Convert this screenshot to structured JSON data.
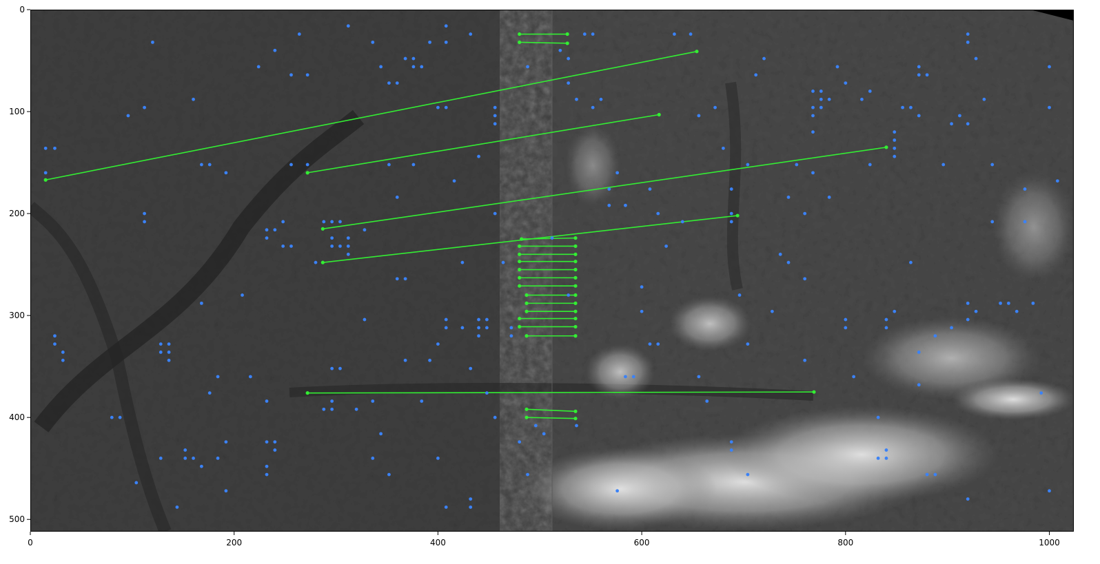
{
  "figure": {
    "background_color": "#ffffff",
    "image_description_colors": {
      "terrain_dark": "#2a2a2a",
      "terrain_mid": "#4a4a4a",
      "cloud": "#d8d8d8"
    },
    "keypoint_color": "#3b82f6",
    "match_color": "#33ee33"
  },
  "axes": {
    "xlim": [
      0,
      1024
    ],
    "ylim": [
      512,
      0
    ],
    "x_ticks": [
      0,
      200,
      400,
      600,
      800,
      1000
    ],
    "y_ticks": [
      0,
      100,
      200,
      300,
      400,
      500
    ],
    "x_tick_labels": [
      "0",
      "200",
      "400",
      "600",
      "800",
      "1000"
    ],
    "y_tick_labels": [
      "0",
      "100",
      "200",
      "300",
      "400",
      "500"
    ]
  },
  "image_split_x": 512,
  "matches": [
    [
      15,
      167,
      654,
      41
    ],
    [
      272,
      160,
      617,
      103
    ],
    [
      287,
      215,
      840,
      135
    ],
    [
      287,
      248,
      694,
      202
    ],
    [
      272,
      376,
      769,
      375
    ],
    [
      480,
      24,
      527,
      24
    ],
    [
      480,
      32,
      527,
      33
    ],
    [
      482,
      225,
      535,
      224
    ],
    [
      480,
      232,
      535,
      232
    ],
    [
      480,
      240,
      535,
      240
    ],
    [
      480,
      247,
      535,
      247
    ],
    [
      480,
      255,
      535,
      255
    ],
    [
      480,
      263,
      535,
      263
    ],
    [
      480,
      271,
      535,
      271
    ],
    [
      487,
      280,
      535,
      280
    ],
    [
      487,
      288,
      535,
      288
    ],
    [
      487,
      296,
      535,
      296
    ],
    [
      480,
      303,
      535,
      303
    ],
    [
      480,
      311,
      535,
      311
    ],
    [
      487,
      320,
      535,
      320
    ],
    [
      487,
      392,
      535,
      394
    ],
    [
      487,
      400,
      535,
      401
    ]
  ],
  "keypoints": [
    [
      15,
      136
    ],
    [
      24,
      136
    ],
    [
      15,
      160
    ],
    [
      24,
      320
    ],
    [
      24,
      328
    ],
    [
      32,
      336
    ],
    [
      32,
      344
    ],
    [
      80,
      400
    ],
    [
      88,
      400
    ],
    [
      96,
      104
    ],
    [
      104,
      464
    ],
    [
      112,
      96
    ],
    [
      112,
      200
    ],
    [
      112,
      208
    ],
    [
      120,
      32
    ],
    [
      128,
      328
    ],
    [
      128,
      336
    ],
    [
      136,
      328
    ],
    [
      136,
      336
    ],
    [
      136,
      344
    ],
    [
      128,
      440
    ],
    [
      144,
      488
    ],
    [
      152,
      432
    ],
    [
      152,
      440
    ],
    [
      160,
      88
    ],
    [
      160,
      440
    ],
    [
      168,
      152
    ],
    [
      168,
      288
    ],
    [
      168,
      448
    ],
    [
      176,
      152
    ],
    [
      176,
      376
    ],
    [
      184,
      360
    ],
    [
      184,
      440
    ],
    [
      192,
      160
    ],
    [
      192,
      424
    ],
    [
      192,
      472
    ],
    [
      208,
      280
    ],
    [
      216,
      360
    ],
    [
      224,
      56
    ],
    [
      232,
      216
    ],
    [
      232,
      224
    ],
    [
      232,
      384
    ],
    [
      232,
      424
    ],
    [
      232,
      448
    ],
    [
      232,
      456
    ],
    [
      240,
      40
    ],
    [
      240,
      216
    ],
    [
      240,
      424
    ],
    [
      240,
      432
    ],
    [
      248,
      232
    ],
    [
      248,
      208
    ],
    [
      256,
      64
    ],
    [
      256,
      152
    ],
    [
      256,
      232
    ],
    [
      264,
      24
    ],
    [
      272,
      64
    ],
    [
      272,
      152
    ],
    [
      280,
      248
    ],
    [
      288,
      208
    ],
    [
      288,
      392
    ],
    [
      296,
      208
    ],
    [
      296,
      224
    ],
    [
      296,
      232
    ],
    [
      296,
      352
    ],
    [
      296,
      384
    ],
    [
      296,
      392
    ],
    [
      304,
      352
    ],
    [
      304,
      208
    ],
    [
      304,
      232
    ],
    [
      312,
      16
    ],
    [
      312,
      224
    ],
    [
      312,
      232
    ],
    [
      312,
      240
    ],
    [
      320,
      392
    ],
    [
      328,
      216
    ],
    [
      328,
      304
    ],
    [
      336,
      32
    ],
    [
      336,
      384
    ],
    [
      336,
      440
    ],
    [
      344,
      56
    ],
    [
      344,
      416
    ],
    [
      352,
      72
    ],
    [
      352,
      152
    ],
    [
      352,
      456
    ],
    [
      360,
      72
    ],
    [
      360,
      184
    ],
    [
      360,
      264
    ],
    [
      368,
      48
    ],
    [
      368,
      264
    ],
    [
      368,
      344
    ],
    [
      376,
      48
    ],
    [
      376,
      56
    ],
    [
      376,
      152
    ],
    [
      384,
      56
    ],
    [
      384,
      384
    ],
    [
      392,
      32
    ],
    [
      392,
      344
    ],
    [
      400,
      96
    ],
    [
      400,
      328
    ],
    [
      400,
      440
    ],
    [
      408,
      16
    ],
    [
      408,
      32
    ],
    [
      408,
      96
    ],
    [
      408,
      304
    ],
    [
      408,
      312
    ],
    [
      408,
      488
    ],
    [
      416,
      168
    ],
    [
      424,
      248
    ],
    [
      424,
      312
    ],
    [
      432,
      24
    ],
    [
      432,
      352
    ],
    [
      432,
      480
    ],
    [
      432,
      488
    ],
    [
      440,
      144
    ],
    [
      440,
      304
    ],
    [
      440,
      312
    ],
    [
      440,
      320
    ],
    [
      448,
      304
    ],
    [
      448,
      312
    ],
    [
      448,
      376
    ],
    [
      456,
      96
    ],
    [
      456,
      104
    ],
    [
      456,
      112
    ],
    [
      456,
      200
    ],
    [
      456,
      400
    ],
    [
      464,
      248
    ],
    [
      472,
      312
    ],
    [
      472,
      320
    ],
    [
      480,
      424
    ],
    [
      488,
      56
    ],
    [
      488,
      456
    ],
    [
      496,
      408
    ],
    [
      504,
      416
    ],
    [
      512,
      224
    ],
    [
      520,
      40
    ],
    [
      528,
      72
    ],
    [
      528,
      280
    ],
    [
      528,
      48
    ],
    [
      536,
      88
    ],
    [
      536,
      408
    ],
    [
      544,
      24
    ],
    [
      552,
      24
    ],
    [
      552,
      96
    ],
    [
      560,
      88
    ],
    [
      568,
      176
    ],
    [
      568,
      192
    ],
    [
      576,
      472
    ],
    [
      576,
      160
    ],
    [
      584,
      192
    ],
    [
      584,
      360
    ],
    [
      592,
      360
    ],
    [
      600,
      272
    ],
    [
      600,
      296
    ],
    [
      608,
      328
    ],
    [
      608,
      176
    ],
    [
      616,
      328
    ],
    [
      616,
      200
    ],
    [
      624,
      232
    ],
    [
      632,
      24
    ],
    [
      640,
      208
    ],
    [
      648,
      24
    ],
    [
      656,
      104
    ],
    [
      656,
      360
    ],
    [
      664,
      384
    ],
    [
      672,
      96
    ],
    [
      680,
      136
    ],
    [
      688,
      176
    ],
    [
      688,
      200
    ],
    [
      688,
      208
    ],
    [
      688,
      424
    ],
    [
      688,
      432
    ],
    [
      696,
      280
    ],
    [
      704,
      328
    ],
    [
      704,
      456
    ],
    [
      704,
      152
    ],
    [
      712,
      64
    ],
    [
      720,
      48
    ],
    [
      728,
      296
    ],
    [
      736,
      240
    ],
    [
      744,
      248
    ],
    [
      744,
      184
    ],
    [
      752,
      152
    ],
    [
      760,
      200
    ],
    [
      760,
      344
    ],
    [
      760,
      264
    ],
    [
      768,
      80
    ],
    [
      768,
      96
    ],
    [
      768,
      104
    ],
    [
      768,
      120
    ],
    [
      768,
      160
    ],
    [
      776,
      80
    ],
    [
      776,
      88
    ],
    [
      776,
      96
    ],
    [
      784,
      184
    ],
    [
      784,
      88
    ],
    [
      792,
      56
    ],
    [
      800,
      72
    ],
    [
      800,
      304
    ],
    [
      800,
      312
    ],
    [
      808,
      360
    ],
    [
      816,
      88
    ],
    [
      824,
      80
    ],
    [
      824,
      152
    ],
    [
      832,
      400
    ],
    [
      832,
      440
    ],
    [
      840,
      440
    ],
    [
      840,
      432
    ],
    [
      840,
      304
    ],
    [
      840,
      312
    ],
    [
      848,
      296
    ],
    [
      848,
      120
    ],
    [
      848,
      128
    ],
    [
      848,
      136
    ],
    [
      848,
      144
    ],
    [
      856,
      96
    ],
    [
      864,
      96
    ],
    [
      864,
      248
    ],
    [
      872,
      56
    ],
    [
      872,
      64
    ],
    [
      872,
      368
    ],
    [
      872,
      104
    ],
    [
      880,
      64
    ],
    [
      888,
      320
    ],
    [
      896,
      152
    ],
    [
      904,
      312
    ],
    [
      904,
      112
    ],
    [
      912,
      104
    ],
    [
      920,
      112
    ],
    [
      920,
      24
    ],
    [
      920,
      32
    ],
    [
      920,
      288
    ],
    [
      920,
      304
    ],
    [
      928,
      296
    ],
    [
      928,
      48
    ],
    [
      936,
      88
    ],
    [
      944,
      208
    ],
    [
      944,
      152
    ],
    [
      952,
      288
    ],
    [
      960,
      288
    ],
    [
      968,
      296
    ],
    [
      976,
      176
    ],
    [
      976,
      208
    ],
    [
      984,
      288
    ],
    [
      992,
      376
    ],
    [
      1000,
      56
    ],
    [
      1000,
      96
    ],
    [
      1008,
      168
    ],
    [
      1000,
      472
    ],
    [
      920,
      480
    ],
    [
      888,
      456
    ],
    [
      880,
      456
    ],
    [
      872,
      336
    ]
  ]
}
